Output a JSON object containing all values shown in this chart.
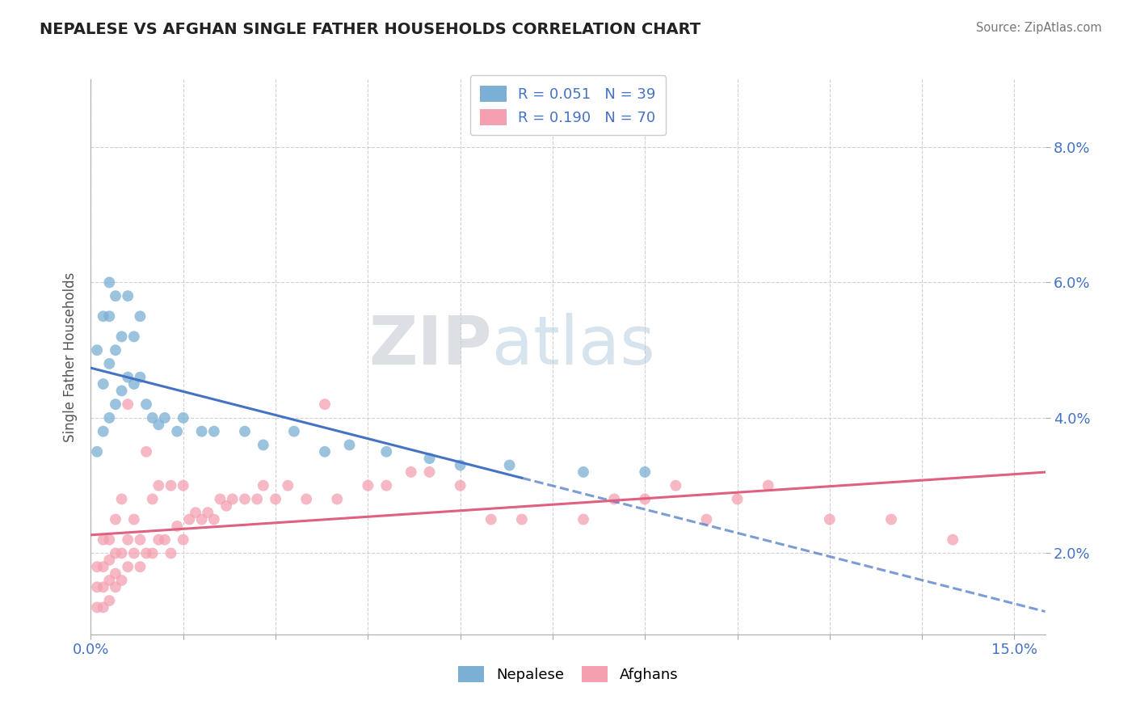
{
  "title": "NEPALESE VS AFGHAN SINGLE FATHER HOUSEHOLDS CORRELATION CHART",
  "source": "Source: ZipAtlas.com",
  "ylabel": "Single Father Households",
  "xlim": [
    0.0,
    0.155
  ],
  "ylim": [
    0.008,
    0.09
  ],
  "ytick_positions": [
    0.02,
    0.04,
    0.06,
    0.08
  ],
  "ytick_labels": [
    "2.0%",
    "4.0%",
    "6.0%",
    "8.0%"
  ],
  "xtick_positions": [
    0.0,
    0.015,
    0.03,
    0.045,
    0.06,
    0.075,
    0.09,
    0.105,
    0.12,
    0.135,
    0.15
  ],
  "xtick_labels": [
    "0.0%",
    "",
    "",
    "",
    "",
    "",
    "",
    "",
    "",
    "",
    "15.0%"
  ],
  "nepalese_R": 0.051,
  "nepalese_N": 39,
  "afghans_R": 0.19,
  "afghans_N": 70,
  "nepalese_color": "#7bafd4",
  "afghans_color": "#f4a0b0",
  "nepalese_line_color": "#4472c4",
  "afghans_line_color": "#e06080",
  "grid_color": "#cccccc",
  "axis_label_color": "#4472c4",
  "nepalese_x": [
    0.001,
    0.001,
    0.002,
    0.002,
    0.002,
    0.003,
    0.003,
    0.003,
    0.003,
    0.004,
    0.004,
    0.004,
    0.005,
    0.005,
    0.006,
    0.006,
    0.007,
    0.007,
    0.008,
    0.008,
    0.009,
    0.01,
    0.011,
    0.012,
    0.014,
    0.015,
    0.018,
    0.02,
    0.025,
    0.028,
    0.033,
    0.038,
    0.042,
    0.048,
    0.055,
    0.06,
    0.068,
    0.08,
    0.09
  ],
  "nepalese_y": [
    0.035,
    0.05,
    0.038,
    0.045,
    0.055,
    0.04,
    0.048,
    0.055,
    0.06,
    0.042,
    0.05,
    0.058,
    0.044,
    0.052,
    0.046,
    0.058,
    0.045,
    0.052,
    0.046,
    0.055,
    0.042,
    0.04,
    0.039,
    0.04,
    0.038,
    0.04,
    0.038,
    0.038,
    0.038,
    0.036,
    0.038,
    0.035,
    0.036,
    0.035,
    0.034,
    0.033,
    0.033,
    0.032,
    0.032
  ],
  "afghans_x": [
    0.001,
    0.001,
    0.001,
    0.002,
    0.002,
    0.002,
    0.002,
    0.003,
    0.003,
    0.003,
    0.003,
    0.004,
    0.004,
    0.004,
    0.004,
    0.005,
    0.005,
    0.005,
    0.006,
    0.006,
    0.006,
    0.007,
    0.007,
    0.008,
    0.008,
    0.009,
    0.009,
    0.01,
    0.01,
    0.011,
    0.011,
    0.012,
    0.013,
    0.013,
    0.014,
    0.015,
    0.015,
    0.016,
    0.017,
    0.018,
    0.019,
    0.02,
    0.021,
    0.022,
    0.023,
    0.025,
    0.027,
    0.028,
    0.03,
    0.032,
    0.035,
    0.038,
    0.04,
    0.045,
    0.048,
    0.052,
    0.055,
    0.06,
    0.065,
    0.07,
    0.08,
    0.085,
    0.09,
    0.095,
    0.1,
    0.105,
    0.11,
    0.12,
    0.13,
    0.14
  ],
  "afghans_y": [
    0.012,
    0.015,
    0.018,
    0.012,
    0.015,
    0.018,
    0.022,
    0.013,
    0.016,
    0.019,
    0.022,
    0.015,
    0.017,
    0.02,
    0.025,
    0.016,
    0.02,
    0.028,
    0.018,
    0.022,
    0.042,
    0.02,
    0.025,
    0.018,
    0.022,
    0.02,
    0.035,
    0.02,
    0.028,
    0.022,
    0.03,
    0.022,
    0.02,
    0.03,
    0.024,
    0.022,
    0.03,
    0.025,
    0.026,
    0.025,
    0.026,
    0.025,
    0.028,
    0.027,
    0.028,
    0.028,
    0.028,
    0.03,
    0.028,
    0.03,
    0.028,
    0.042,
    0.028,
    0.03,
    0.03,
    0.032,
    0.032,
    0.03,
    0.025,
    0.025,
    0.025,
    0.028,
    0.028,
    0.03,
    0.025,
    0.028,
    0.03,
    0.025,
    0.025,
    0.022
  ]
}
